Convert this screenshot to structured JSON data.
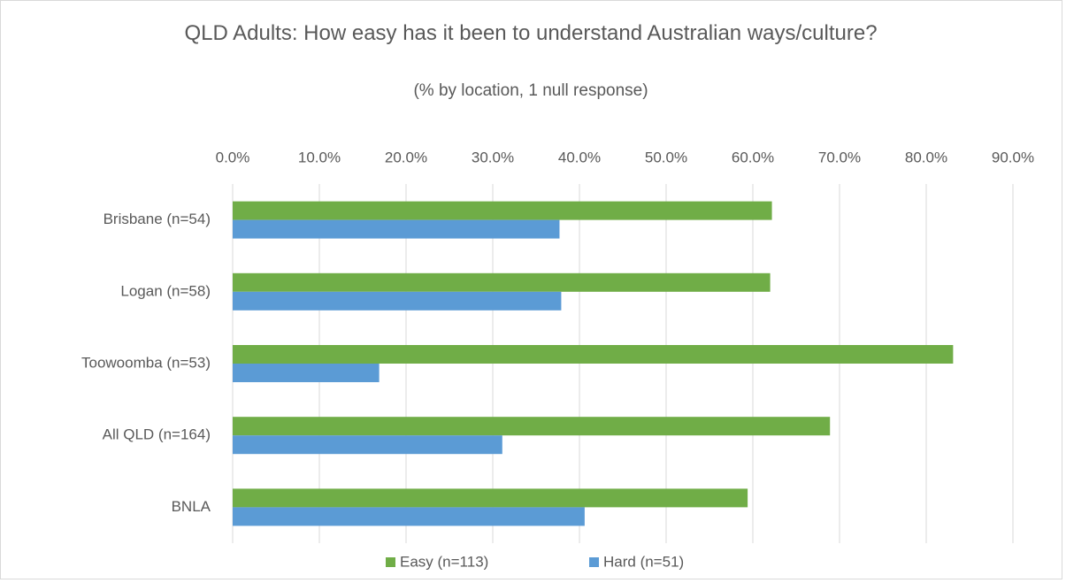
{
  "chart_data": {
    "type": "hbar",
    "title": "QLD Adults: How easy has it been to understand Australian ways/culture?",
    "subtitle": "(% by location, 1 null response)",
    "categories": [
      "Brisbane (n=54)",
      "Logan (n=58)",
      "Toowoomba (n=53)",
      "All QLD (n=164)",
      "BNLA"
    ],
    "series": [
      {
        "name": "Easy (n=113)",
        "color": "#70ad47",
        "values": [
          62.2,
          62.0,
          83.1,
          68.9,
          59.4
        ]
      },
      {
        "name": "Hard (n=51)",
        "color": "#5b9bd5",
        "values": [
          37.7,
          37.9,
          16.9,
          31.1,
          40.6
        ]
      }
    ],
    "xlim": [
      0,
      90
    ],
    "xticks": [
      {
        "value": 0,
        "label": "0.0%"
      },
      {
        "value": 10,
        "label": "10.0%"
      },
      {
        "value": 20,
        "label": "20.0%"
      },
      {
        "value": 30,
        "label": "30.0%"
      },
      {
        "value": 40,
        "label": "40.0%"
      },
      {
        "value": 50,
        "label": "50.0%"
      },
      {
        "value": 60,
        "label": "60.0%"
      },
      {
        "value": 70,
        "label": "70.0%"
      },
      {
        "value": 80,
        "label": "80.0%"
      },
      {
        "value": 90,
        "label": "90.0%"
      }
    ],
    "grid": true,
    "legend": "bottom"
  }
}
